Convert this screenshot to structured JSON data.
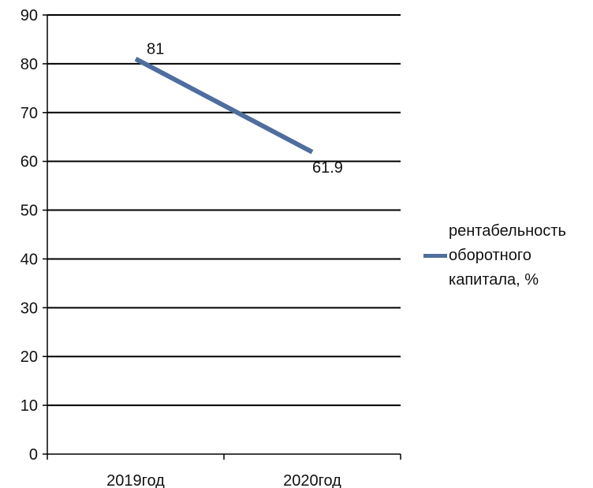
{
  "chart_data": {
    "type": "line",
    "title": "",
    "xlabel": "",
    "ylabel": "",
    "categories": [
      "2019год",
      "2020год"
    ],
    "ylim": [
      0,
      90
    ],
    "yticks": [
      0,
      10,
      20,
      30,
      40,
      50,
      60,
      70,
      80,
      90
    ],
    "grid": true,
    "legend_position": "right",
    "series": [
      {
        "name": "рентабельность оборотного капитала, %",
        "values": [
          81,
          61.9
        ],
        "labels": [
          "81",
          "61.9"
        ],
        "color": "#4F6E9F"
      }
    ]
  }
}
